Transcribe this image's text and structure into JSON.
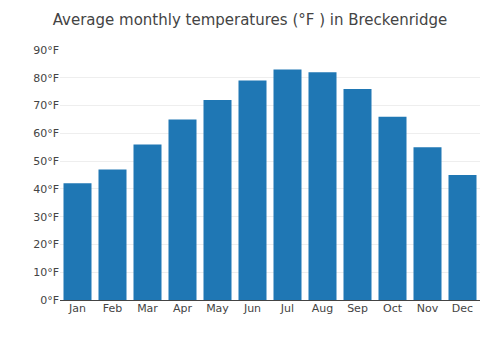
{
  "chart_data": {
    "type": "bar",
    "title": "Average monthly temperatures (°F ) in Breckenridge",
    "categories": [
      "Jan",
      "Feb",
      "Mar",
      "Apr",
      "May",
      "Jun",
      "Jul",
      "Aug",
      "Sep",
      "Oct",
      "Nov",
      "Dec"
    ],
    "values": [
      42,
      47,
      56,
      65,
      72,
      79,
      83,
      82,
      76,
      66,
      55,
      45
    ],
    "ylim": [
      0,
      90
    ],
    "yticks": [
      {
        "value": 0,
        "label": "0°F"
      },
      {
        "value": 10,
        "label": "10°F"
      },
      {
        "value": 20,
        "label": "20°F"
      },
      {
        "value": 30,
        "label": "30°F"
      },
      {
        "value": 40,
        "label": "40°F"
      },
      {
        "value": 50,
        "label": "50°F"
      },
      {
        "value": 60,
        "label": "60°F"
      },
      {
        "value": 70,
        "label": "70°F"
      },
      {
        "value": 80,
        "label": "80°F"
      },
      {
        "value": 90,
        "label": "90°F"
      }
    ],
    "grid": true
  }
}
